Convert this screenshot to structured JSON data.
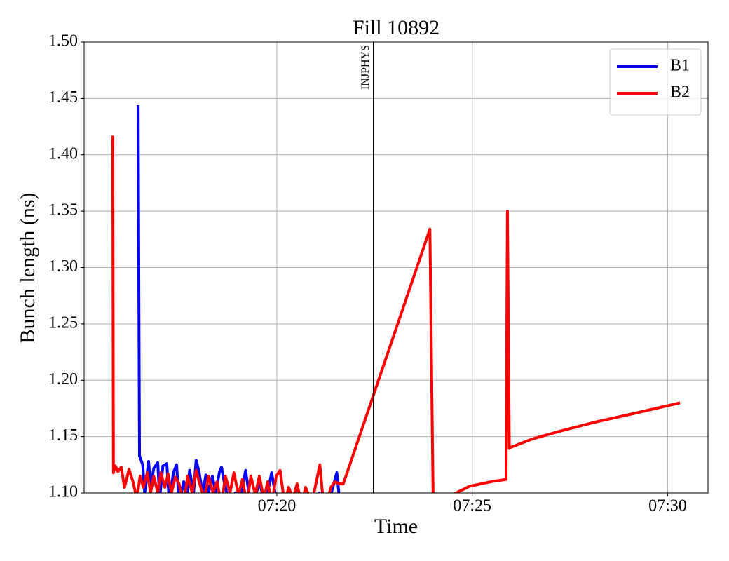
{
  "chart_data": {
    "type": "line",
    "title": "Fill 10892",
    "xlabel": "Time",
    "ylabel": "Bunch length (ns)",
    "xlim": [
      "07:15:04",
      "07:31:02"
    ],
    "ylim": [
      1.1,
      1.5
    ],
    "xticks": [
      "07:20",
      "07:25",
      "07:30"
    ],
    "yticks": [
      {
        "value": 1.1,
        "label": "1.10"
      },
      {
        "value": 1.15,
        "label": "1.15"
      },
      {
        "value": 1.2,
        "label": "1.20"
      },
      {
        "value": 1.25,
        "label": "1.25"
      },
      {
        "value": 1.3,
        "label": "1.30"
      },
      {
        "value": 1.35,
        "label": "1.35"
      },
      {
        "value": 1.4,
        "label": "1.40"
      },
      {
        "value": 1.45,
        "label": "1.45"
      },
      {
        "value": 1.5,
        "label": "1.50"
      }
    ],
    "grid": true,
    "legend": "upper right",
    "annotations": [
      {
        "text": "INJPHYS",
        "x": "07:22:28"
      }
    ],
    "series": [
      {
        "name": "B1",
        "color": "#0000ff",
        "x": [
          "07:16:27",
          "07:16:29",
          "07:16:34",
          "07:16:37",
          "07:16:43",
          "07:16:46",
          "07:16:51",
          "07:16:57",
          "07:17:00",
          "07:17:05",
          "07:17:11",
          "07:17:15",
          "07:17:21",
          "07:17:26",
          "07:17:30",
          "07:17:37",
          "07:17:42",
          "07:17:46",
          "07:17:52",
          "07:17:56",
          "07:18:00",
          "07:18:06",
          "07:18:11",
          "07:18:15",
          "07:18:21",
          "07:18:26",
          "07:18:32",
          "07:18:35",
          "07:18:39",
          "07:18:43",
          "07:18:50",
          "07:18:56",
          "07:19:02",
          "07:19:12",
          "07:19:17",
          "07:19:24",
          "07:19:33",
          "07:19:42",
          "07:19:52",
          "07:20:00",
          "07:20:16",
          "07:20:27",
          "07:20:48",
          "07:21:05",
          "07:21:19",
          "07:21:32",
          "07:21:37",
          "07:21:42"
        ],
        "values": [
          1.444,
          1.133,
          1.125,
          1.1,
          1.128,
          1.105,
          1.122,
          1.127,
          1.095,
          1.124,
          1.126,
          1.09,
          1.118,
          1.125,
          1.09,
          1.11,
          1.098,
          1.12,
          1.1,
          1.129,
          1.12,
          1.1,
          1.116,
          1.1,
          1.115,
          1.1,
          1.119,
          1.123,
          1.11,
          1.1,
          1.092,
          1.1,
          1.09,
          1.12,
          1.1,
          1.09,
          1.11,
          1.09,
          1.118,
          1.09,
          1.1,
          1.09,
          1.09,
          1.1,
          1.09,
          1.118,
          1.09,
          1.1
        ]
      },
      {
        "name": "B2",
        "color": "#ff0000",
        "x": [
          "07:15:48",
          "07:15:49",
          "07:15:52",
          "07:15:56",
          "07:16:01",
          "07:16:06",
          "07:16:13",
          "07:16:19",
          "07:16:25",
          "07:16:30",
          "07:16:35",
          "07:16:41",
          "07:16:46",
          "07:16:51",
          "07:16:57",
          "07:17:02",
          "07:17:08",
          "07:17:13",
          "07:17:18",
          "07:17:24",
          "07:17:30",
          "07:17:37",
          "07:17:43",
          "07:17:50",
          "07:17:56",
          "07:18:03",
          "07:18:09",
          "07:18:15",
          "07:18:22",
          "07:18:28",
          "07:18:35",
          "07:18:41",
          "07:18:48",
          "07:18:54",
          "07:19:01",
          "07:19:07",
          "07:19:14",
          "07:19:20",
          "07:19:27",
          "07:19:33",
          "07:19:40",
          "07:19:46",
          "07:19:52",
          "07:19:59",
          "07:20:05",
          "07:20:12",
          "07:20:18",
          "07:20:25",
          "07:20:31",
          "07:20:38",
          "07:20:44",
          "07:20:51",
          "07:20:57",
          "07:21:06",
          "07:21:10",
          "07:21:16",
          "07:21:23",
          "07:21:29",
          "07:21:36",
          "07:21:42",
          "07:23:55",
          "07:24:00",
          "07:24:07",
          "07:24:35",
          "07:24:56",
          "07:25:29",
          "07:25:52",
          "07:25:54",
          "07:25:57",
          "07:26:33",
          "07:27:16",
          "07:28:10",
          "07:29:04",
          "07:30:19"
        ],
        "values": [
          1.417,
          1.118,
          1.124,
          1.119,
          1.123,
          1.105,
          1.121,
          1.11,
          1.095,
          1.115,
          1.105,
          1.118,
          1.1,
          1.115,
          1.1,
          1.118,
          1.105,
          1.117,
          1.1,
          1.114,
          1.108,
          1.09,
          1.115,
          1.1,
          1.12,
          1.105,
          1.095,
          1.115,
          1.1,
          1.11,
          1.09,
          1.115,
          1.1,
          1.118,
          1.098,
          1.112,
          1.09,
          1.115,
          1.098,
          1.115,
          1.095,
          1.11,
          1.09,
          1.115,
          1.12,
          1.09,
          1.105,
          1.095,
          1.108,
          1.09,
          1.105,
          1.095,
          1.1,
          1.125,
          1.1,
          1.09,
          1.105,
          1.11,
          1.108,
          1.108,
          1.334,
          1.09,
          1.09,
          1.1,
          1.106,
          1.11,
          1.112,
          1.35,
          1.14,
          1.148,
          1.155,
          1.163,
          1.17,
          1.18
        ]
      }
    ]
  }
}
